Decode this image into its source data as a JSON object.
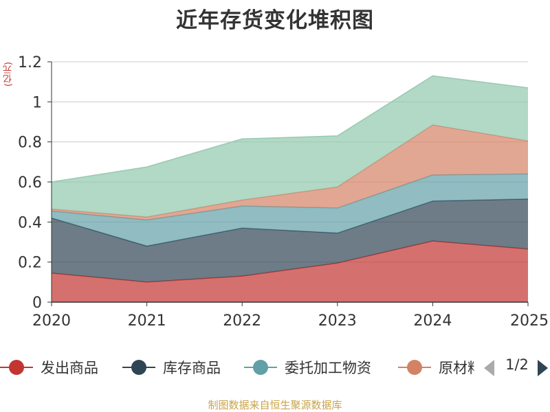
{
  "chart_data": {
    "type": "area",
    "stacked": true,
    "title": "近年存货变化堆积图",
    "ylabel": "(亿元)",
    "categories": [
      "2020",
      "2021",
      "2022",
      "2023",
      "2024",
      "2025"
    ],
    "ylim": [
      0,
      1.2
    ],
    "yticks": [
      "0",
      "0.2",
      "0.4",
      "0.6",
      "0.8",
      "1",
      "1.2"
    ],
    "grid": true,
    "legend_position": "bottom",
    "series": [
      {
        "name": "发出商品",
        "color": "#c23531",
        "values": [
          0.145,
          0.1,
          0.13,
          0.195,
          0.305,
          0.265
        ]
      },
      {
        "name": "库存商品",
        "color": "#2f4554",
        "values": [
          0.275,
          0.18,
          0.24,
          0.15,
          0.2,
          0.25
        ]
      },
      {
        "name": "委托加工物资",
        "color": "#61a0a8",
        "values": [
          0.035,
          0.13,
          0.11,
          0.125,
          0.13,
          0.125
        ]
      },
      {
        "name": "原材料",
        "color": "#d48265",
        "values": [
          0.01,
          0.015,
          0.03,
          0.105,
          0.25,
          0.165
        ]
      },
      {
        "color": "#91c7ae",
        "values": [
          0.135,
          0.25,
          0.305,
          0.255,
          0.245,
          0.265
        ]
      }
    ]
  },
  "legend": {
    "items": [
      {
        "label": "发出商品",
        "color": "#c23531"
      },
      {
        "label": "库存商品",
        "color": "#2f4554"
      },
      {
        "label": "委托加工物资",
        "color": "#61a0a8"
      },
      {
        "label": "原材料",
        "color": "#d48265"
      }
    ],
    "page": "1/2"
  },
  "source": "制图数据来自恒生聚源数据库"
}
